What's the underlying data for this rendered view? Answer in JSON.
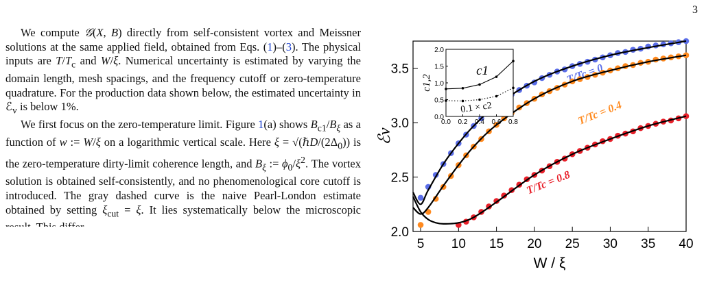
{
  "page_number": "3",
  "paragraphs": [
    "We compute 𝒢(X, B) directly from self-consistent vortex and Meissner solutions at the same applied field, obtained from Eqs. (1)–(3). The physical inputs are T/Tc and W/ξ. Numerical uncertainty is estimated by varying the domain length, mesh spacings, and the frequency cutoff or zero-temperature quadrature. For the production data shown below, the estimated uncertainty in ℰv is below 1%.",
    "We first focus on the zero-temperature limit. Figure 1(a) shows Bc1/Bξ as a function of w := W/ξ on a logarithmic vertical scale. Here ξ = √(ℏD/(2Δ0)) is the zero-temperature dirty-limit coherence length, and Bξ := ϕ0/ξ². The vortex solution is obtained self-consistently, and no phenomenological core cutoff is introduced. The gray dashed curve is the naive Pearl-London estimate obtained by setting ξcut = ξ. It lies systematically below the microscopic result. This differ-"
  ],
  "chart_data": [
    {
      "type": "scatter",
      "xlabel": "W / ξ",
      "ylabel": "ℰv",
      "xlim": [
        4,
        40
      ],
      "ylim": [
        2.0,
        3.75
      ],
      "xticks": [
        5,
        10,
        15,
        20,
        25,
        30,
        35,
        40
      ],
      "yticks": [
        2.0,
        2.5,
        3.0,
        3.5
      ],
      "grid": false,
      "series": [
        {
          "name": "T / Tc = 0",
          "color": "#5b6ee8",
          "x": [
            5,
            6,
            7,
            8,
            9,
            10,
            11,
            12,
            13,
            14,
            15,
            16,
            17,
            18,
            19,
            20,
            21,
            22,
            23,
            24,
            25,
            26,
            27,
            28,
            29,
            30,
            31,
            32,
            33,
            34,
            35,
            36,
            37,
            38,
            39,
            40
          ],
          "y": [
            2.31,
            2.41,
            2.52,
            2.62,
            2.72,
            2.81,
            2.89,
            2.97,
            3.04,
            3.1,
            3.16,
            3.21,
            3.26,
            3.3,
            3.34,
            3.37,
            3.41,
            3.44,
            3.47,
            3.49,
            3.52,
            3.54,
            3.56,
            3.58,
            3.6,
            3.62,
            3.64,
            3.65,
            3.67,
            3.68,
            3.7,
            3.71,
            3.72,
            3.73,
            3.74,
            3.75
          ],
          "fit_x": [
            4,
            5,
            6,
            8,
            10,
            12,
            15,
            20,
            25,
            30,
            35,
            40
          ],
          "fit_y": [
            2.36,
            2.25,
            2.38,
            2.62,
            2.81,
            2.97,
            3.16,
            3.38,
            3.52,
            3.62,
            3.69,
            3.75
          ]
        },
        {
          "name": "T / Tc = 0.4",
          "color": "#ff8a1f",
          "x": [
            5,
            6,
            7,
            8,
            9,
            10,
            11,
            12,
            13,
            14,
            15,
            16,
            17,
            18,
            19,
            20,
            21,
            22,
            23,
            24,
            25,
            26,
            27,
            28,
            29,
            30,
            31,
            32,
            33,
            34,
            35,
            36,
            37,
            38,
            39,
            40
          ],
          "y": [
            2.06,
            2.18,
            2.3,
            2.41,
            2.51,
            2.61,
            2.7,
            2.78,
            2.85,
            2.92,
            2.98,
            3.04,
            3.09,
            3.14,
            3.18,
            3.22,
            3.26,
            3.29,
            3.32,
            3.35,
            3.38,
            3.4,
            3.42,
            3.44,
            3.46,
            3.48,
            3.5,
            3.52,
            3.53,
            3.55,
            3.56,
            3.58,
            3.59,
            3.6,
            3.61,
            3.62
          ],
          "fit_x": [
            4,
            5,
            6,
            8,
            10,
            12,
            15,
            20,
            25,
            30,
            35,
            40
          ],
          "fit_y": [
            2.22,
            2.16,
            2.22,
            2.42,
            2.61,
            2.78,
            2.98,
            3.22,
            3.38,
            3.48,
            3.56,
            3.62
          ]
        },
        {
          "name": "T / Tc = 0.8",
          "color": "#e8202a",
          "x": [
            10,
            11,
            12,
            13,
            14,
            15,
            16,
            17,
            18,
            19,
            20,
            21,
            22,
            23,
            24,
            25,
            26,
            27,
            28,
            29,
            30,
            31,
            32,
            33,
            34,
            35,
            36,
            37,
            38,
            39,
            40
          ],
          "y": [
            2.06,
            2.09,
            2.13,
            2.18,
            2.23,
            2.28,
            2.33,
            2.38,
            2.43,
            2.48,
            2.52,
            2.56,
            2.6,
            2.64,
            2.67,
            2.71,
            2.74,
            2.77,
            2.8,
            2.83,
            2.85,
            2.88,
            2.9,
            2.92,
            2.95,
            2.97,
            2.99,
            3.01,
            3.02,
            3.04,
            3.06
          ],
          "fit_x": [
            4,
            5,
            6,
            7,
            8,
            10,
            12,
            15,
            20,
            25,
            30,
            35,
            40
          ],
          "fit_y": [
            2.32,
            2.18,
            2.11,
            2.08,
            2.07,
            2.08,
            2.13,
            2.27,
            2.52,
            2.71,
            2.85,
            2.97,
            3.06
          ]
        }
      ]
    },
    {
      "type": "line",
      "xlim": [
        0.0,
        0.8
      ],
      "ylim": [
        0.0,
        2.0
      ],
      "xticks": [
        "0.0",
        "0.2",
        "0.4",
        "0.6",
        "0.8"
      ],
      "yticks": [
        "0.0",
        "0.5",
        "1.0",
        "1.5",
        "2.0"
      ],
      "ylabel": "c1,2",
      "series": [
        {
          "name": "c1",
          "style": "solid",
          "x": [
            0.0,
            0.2,
            0.4,
            0.6,
            0.8
          ],
          "y": [
            0.82,
            0.84,
            0.95,
            1.18,
            1.65
          ]
        },
        {
          "name": "0.1 × c2",
          "style": "dotted",
          "x": [
            0.0,
            0.2,
            0.4,
            0.6,
            0.8
          ],
          "y": [
            0.47,
            0.46,
            0.5,
            0.6,
            0.85
          ]
        }
      ]
    }
  ]
}
